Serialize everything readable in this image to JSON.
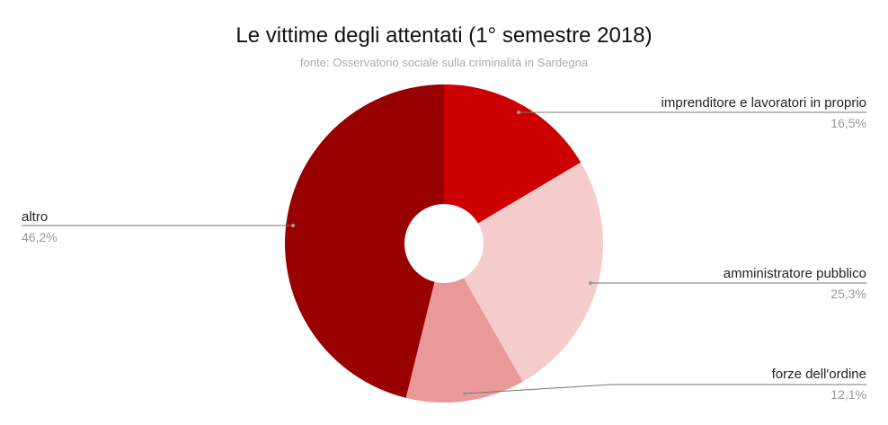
{
  "chart_data": {
    "type": "pie",
    "donut": true,
    "title": "Le vittime degli attentati (1° semestre 2018)",
    "subtitle": "fonte: Osservatorio sociale sulla criminalità in Sardegna",
    "categories": [
      "imprenditore e lavoratori in proprio",
      "amministratore pubblico",
      "forze dell'ordine",
      "altro"
    ],
    "values": [
      16.5,
      25.3,
      12.1,
      46.2
    ],
    "value_labels": [
      "16,5%",
      "25,3%",
      "12,1%",
      "46,2%"
    ],
    "colors": [
      "#cc0000",
      "#f4cccc",
      "#ea9999",
      "#990000"
    ],
    "legend": "labels with leader lines"
  },
  "slices": [
    {
      "label": "imprenditore e lavoratori in proprio",
      "pct": "16,5%"
    },
    {
      "label": "amministratore pubblico",
      "pct": "25,3%"
    },
    {
      "label": "forze dell'ordine",
      "pct": "12,1%"
    },
    {
      "label": "altro",
      "pct": "46,2%"
    }
  ]
}
